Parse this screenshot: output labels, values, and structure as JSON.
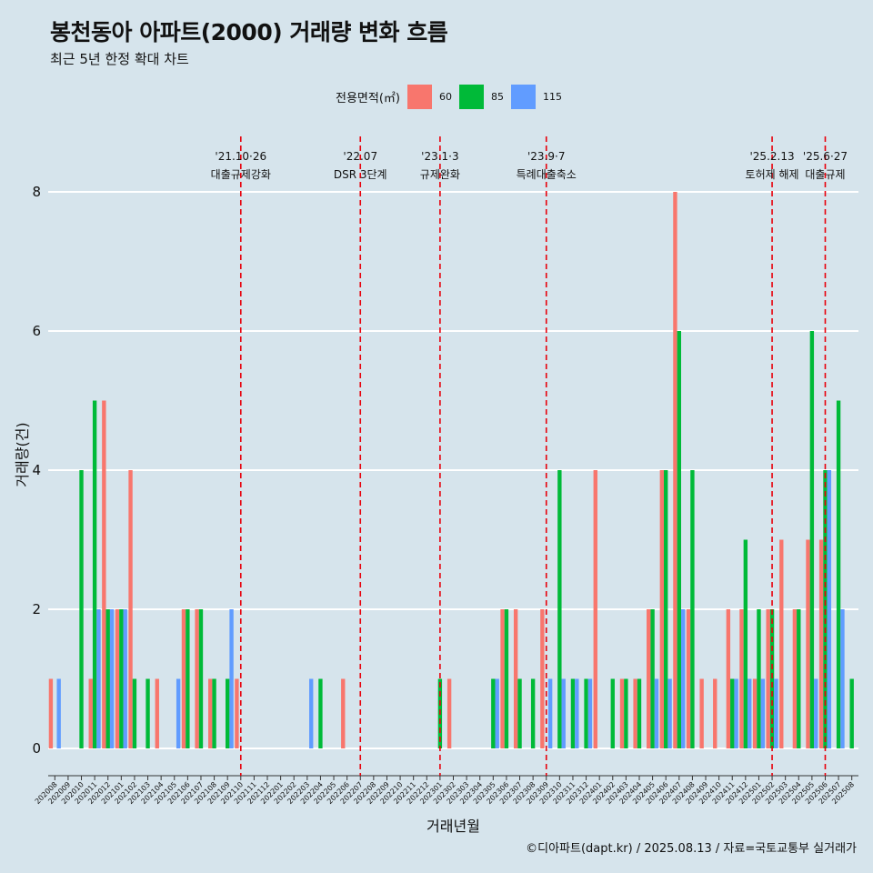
{
  "header": {
    "title": "봉천동아 아파트(2000) 거래량 변화 흐름",
    "subtitle": "최근 5년 한정 확대 차트"
  },
  "legend": {
    "title": "전용면적(㎡)",
    "items": [
      {
        "label": "60",
        "color": "#F8766D"
      },
      {
        "label": "85",
        "color": "#00BA38"
      },
      {
        "label": "115",
        "color": "#619CFF"
      }
    ]
  },
  "caption": "©디아파트(dapt.kr) / 2025.08.13 / 자료=국토교통부 실거래가",
  "chart_data": {
    "type": "bar",
    "xlabel": "거래년월",
    "ylabel": "거래량(건)",
    "ylim": [
      0,
      8.5
    ],
    "yticks": [
      0,
      2,
      4,
      6,
      8
    ],
    "grid": "horizontal",
    "legend_position": "top",
    "categories": [
      "202008",
      "202009",
      "202010",
      "202011",
      "202012",
      "202101",
      "202102",
      "202103",
      "202104",
      "202105",
      "202106",
      "202107",
      "202108",
      "202109",
      "202110",
      "202111",
      "202112",
      "202201",
      "202202",
      "202203",
      "202204",
      "202205",
      "202206",
      "202207",
      "202208",
      "202209",
      "202210",
      "202211",
      "202212",
      "202301",
      "202302",
      "202303",
      "202304",
      "202305",
      "202306",
      "202307",
      "202308",
      "202309",
      "202310",
      "202311",
      "202312",
      "202401",
      "202402",
      "202403",
      "202404",
      "202405",
      "202406",
      "202407",
      "202408",
      "202409",
      "202410",
      "202411",
      "202412",
      "202501",
      "202502",
      "202503",
      "202504",
      "202505",
      "202506",
      "202507",
      "202508"
    ],
    "series": [
      {
        "name": "60",
        "color": "#F8766D",
        "values": [
          1,
          0,
          0,
          1,
          5,
          2,
          4,
          0,
          1,
          0,
          2,
          2,
          1,
          0,
          1,
          0,
          0,
          0,
          0,
          0,
          0,
          0,
          1,
          0,
          0,
          0,
          0,
          0,
          0,
          0,
          1,
          0,
          0,
          0,
          2,
          2,
          0,
          2,
          0,
          0,
          0,
          4,
          0,
          1,
          1,
          2,
          4,
          8,
          2,
          1,
          1,
          2,
          2,
          1,
          2,
          3,
          2,
          3,
          3,
          0,
          0
        ]
      },
      {
        "name": "85",
        "color": "#00BA38",
        "values": [
          0,
          0,
          4,
          5,
          2,
          2,
          1,
          1,
          0,
          0,
          2,
          2,
          1,
          1,
          0,
          0,
          0,
          0,
          0,
          0,
          1,
          0,
          0,
          0,
          0,
          0,
          0,
          0,
          0,
          1,
          0,
          0,
          0,
          1,
          2,
          1,
          1,
          0,
          4,
          1,
          1,
          0,
          1,
          1,
          1,
          2,
          4,
          6,
          4,
          0,
          0,
          1,
          3,
          2,
          2,
          0,
          2,
          6,
          4,
          5,
          1
        ]
      },
      {
        "name": "115",
        "color": "#619CFF",
        "values": [
          1,
          0,
          0,
          2,
          2,
          2,
          0,
          0,
          0,
          1,
          0,
          0,
          0,
          2,
          0,
          0,
          0,
          0,
          0,
          1,
          0,
          0,
          0,
          0,
          0,
          0,
          0,
          0,
          0,
          0,
          0,
          0,
          0,
          1,
          0,
          0,
          0,
          1,
          1,
          1,
          1,
          0,
          0,
          0,
          0,
          1,
          1,
          2,
          0,
          0,
          0,
          1,
          1,
          1,
          1,
          0,
          0,
          1,
          4,
          2,
          0
        ]
      }
    ],
    "events": [
      {
        "date": "'21.10·26",
        "label": "대출규제강화",
        "category": "202110"
      },
      {
        "date": "'22.07",
        "label": "DSR 3단계",
        "category": "202207"
      },
      {
        "date": "'23.1·3",
        "label": "규제완화",
        "category": "202301"
      },
      {
        "date": "'23.9·7",
        "label": "특례대출축소",
        "category": "202309"
      },
      {
        "date": "'25.2.13",
        "label": "토허제 해제",
        "category": "202502"
      },
      {
        "date": "'25.6·27",
        "label": "대출규제",
        "category": "202506"
      }
    ]
  }
}
